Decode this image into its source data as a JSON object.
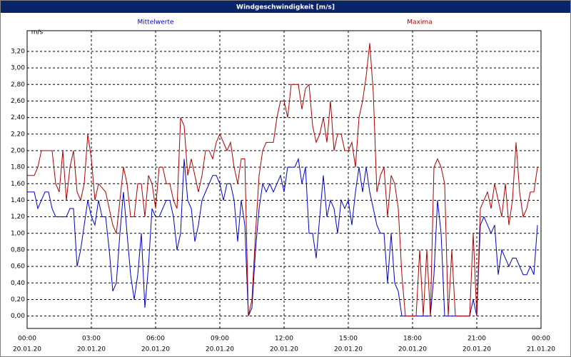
{
  "chart_data": {
    "type": "line",
    "title": "Windgeschwindigkeit [m/s]",
    "y_unit": "m/s",
    "x": [
      0,
      10,
      20,
      30,
      40,
      50,
      60,
      70,
      80,
      90,
      100,
      110,
      120,
      130,
      140,
      150,
      160,
      170,
      180,
      190,
      200,
      210,
      220,
      230,
      240,
      250,
      260,
      270,
      280,
      290,
      300,
      310,
      320,
      330,
      340,
      350,
      360,
      370,
      380,
      390,
      400,
      410,
      420,
      430,
      440,
      450,
      460,
      470,
      480,
      490,
      500,
      510,
      520,
      530,
      540,
      550,
      560,
      570,
      580,
      590,
      600,
      610,
      620,
      630,
      640,
      650,
      660,
      670,
      680,
      690,
      700,
      710,
      720,
      730,
      740,
      750,
      760,
      770,
      780,
      790,
      800,
      810,
      820,
      830,
      840,
      850,
      860,
      870,
      880,
      890,
      900,
      910,
      920,
      930,
      940,
      950,
      960,
      970,
      980,
      990,
      1000,
      1010,
      1020,
      1030,
      1040,
      1050,
      1060,
      1070,
      1080,
      1090,
      1100,
      1110,
      1120,
      1130,
      1140,
      1150,
      1160,
      1170,
      1180,
      1190,
      1200,
      1210,
      1220,
      1230,
      1240,
      1250,
      1260,
      1270,
      1280,
      1290,
      1300,
      1310,
      1320,
      1330,
      1340,
      1350,
      1360,
      1370,
      1380,
      1390,
      1400,
      1410,
      1420,
      1430
    ],
    "series": [
      {
        "name": "Mittelwerte",
        "color": "#0000cc",
        "values": [
          1.5,
          1.5,
          1.5,
          1.3,
          1.4,
          1.5,
          1.5,
          1.3,
          1.2,
          1.2,
          1.2,
          1.2,
          1.3,
          1.3,
          0.6,
          0.8,
          1.1,
          1.4,
          1.2,
          1.1,
          1.4,
          1.2,
          1.2,
          0.8,
          0.3,
          0.4,
          1.0,
          1.5,
          1.0,
          0.5,
          0.2,
          0.5,
          1.0,
          0.1,
          0.6,
          1.3,
          1.2,
          1.2,
          1.3,
          1.4,
          1.4,
          1.2,
          0.8,
          1.0,
          1.9,
          1.4,
          1.3,
          0.9,
          1.1,
          1.4,
          1.5,
          1.6,
          1.7,
          1.7,
          1.6,
          1.4,
          1.6,
          1.6,
          1.4,
          0.9,
          1.4,
          1.1,
          0.0,
          0.1,
          0.8,
          1.3,
          1.6,
          1.5,
          1.6,
          1.5,
          1.6,
          1.7,
          1.5,
          1.8,
          1.8,
          1.8,
          1.9,
          1.6,
          1.8,
          1.0,
          1.0,
          0.7,
          1.2,
          1.7,
          1.2,
          1.4,
          1.3,
          1.0,
          1.4,
          1.3,
          1.4,
          1.1,
          1.5,
          1.8,
          1.5,
          1.8,
          1.5,
          1.3,
          1.1,
          1.0,
          1.0,
          0.4,
          1.0,
          0.4,
          0.3,
          0,
          0,
          0,
          0,
          0,
          0,
          0,
          0,
          0,
          0.5,
          1.4,
          1.0,
          0,
          0,
          0,
          0,
          0,
          0,
          0,
          0,
          0.2,
          0,
          1.1,
          1.2,
          1.1,
          1.0,
          1.1,
          0.5,
          0.8,
          0.7,
          0.6,
          0.7,
          0.7,
          0.6,
          0.5,
          0.5,
          0.6,
          0.5,
          1.1
        ]
      },
      {
        "name": "Maxima",
        "color": "#b00000",
        "values": [
          1.7,
          1.7,
          1.7,
          1.8,
          2.0,
          2.0,
          2.0,
          2.0,
          1.6,
          1.5,
          2.0,
          1.4,
          1.8,
          2.0,
          1.5,
          1.4,
          1.6,
          2.2,
          1.9,
          1.4,
          1.6,
          1.55,
          1.5,
          1.3,
          1.1,
          1.0,
          1.4,
          1.8,
          1.6,
          1.2,
          1.2,
          1.6,
          1.6,
          1.2,
          1.7,
          1.6,
          1.3,
          1.8,
          1.8,
          1.6,
          1.6,
          1.4,
          1.3,
          2.4,
          2.3,
          1.7,
          1.9,
          1.7,
          1.5,
          1.7,
          2.0,
          2.0,
          1.9,
          2.1,
          2.2,
          2.1,
          2.0,
          2.1,
          1.8,
          1.6,
          1.9,
          1.9,
          0,
          0.2,
          1.0,
          1.7,
          2.0,
          2.1,
          2.1,
          2.1,
          2.4,
          2.6,
          2.6,
          2.4,
          2.8,
          2.8,
          2.8,
          2.5,
          2.75,
          2.8,
          2.3,
          2.1,
          2.2,
          2.4,
          2.1,
          2.6,
          2.0,
          2.2,
          2.2,
          2.0,
          2.0,
          2.1,
          1.8,
          2.4,
          2.6,
          2.9,
          3.3,
          2.7,
          1.5,
          1.7,
          1.8,
          1.2,
          1.7,
          1.6,
          1.3,
          0.5,
          0,
          0,
          0,
          0,
          0.8,
          0,
          0.8,
          0,
          1.8,
          1.9,
          1.8,
          1.6,
          0,
          0.8,
          0,
          0,
          0,
          0,
          0,
          1.0,
          0,
          1.3,
          1.4,
          1.5,
          1.3,
          1.6,
          1.4,
          1.2,
          1.6,
          1.1,
          1.4,
          2.1,
          1.5,
          1.2,
          1.3,
          1.5,
          1.5,
          1.8
        ]
      }
    ],
    "xlim": [
      0,
      1440
    ],
    "xticks": [
      {
        "value": 0,
        "label": "00:00"
      },
      {
        "value": 180,
        "label": "03:00"
      },
      {
        "value": 360,
        "label": "06:00"
      },
      {
        "value": 540,
        "label": "09:00"
      },
      {
        "value": 720,
        "label": "12:00"
      },
      {
        "value": 900,
        "label": "15:00"
      },
      {
        "value": 1080,
        "label": "18:00"
      },
      {
        "value": 1260,
        "label": "21:00"
      },
      {
        "value": 1440,
        "label": "00:00"
      }
    ],
    "xtick_dates": [
      "20.01.20",
      "20.01.20",
      "20.01.20",
      "20.01.20",
      "20.01.20",
      "20.01.20",
      "20.01.20",
      "20.01.20",
      "21.01.20"
    ],
    "ylim": [
      -0.15,
      3.45
    ],
    "yticks": [
      {
        "value": 0,
        "label": "0,00"
      },
      {
        "value": 0.2,
        "label": "0,20"
      },
      {
        "value": 0.4,
        "label": "0,40"
      },
      {
        "value": 0.6,
        "label": "0,60"
      },
      {
        "value": 0.8,
        "label": "0,80"
      },
      {
        "value": 1,
        "label": "1,00"
      },
      {
        "value": 1.2,
        "label": "1,20"
      },
      {
        "value": 1.4,
        "label": "1,40"
      },
      {
        "value": 1.6,
        "label": "1,60"
      },
      {
        "value": 1.8,
        "label": "1,80"
      },
      {
        "value": 2,
        "label": "2,00"
      },
      {
        "value": 2.2,
        "label": "2,20"
      },
      {
        "value": 2.4,
        "label": "2,40"
      },
      {
        "value": 2.6,
        "label": "2,60"
      },
      {
        "value": 2.8,
        "label": "2,80"
      },
      {
        "value": 3,
        "label": "3,00"
      },
      {
        "value": 3.2,
        "label": "3,20"
      }
    ],
    "grid": true
  }
}
